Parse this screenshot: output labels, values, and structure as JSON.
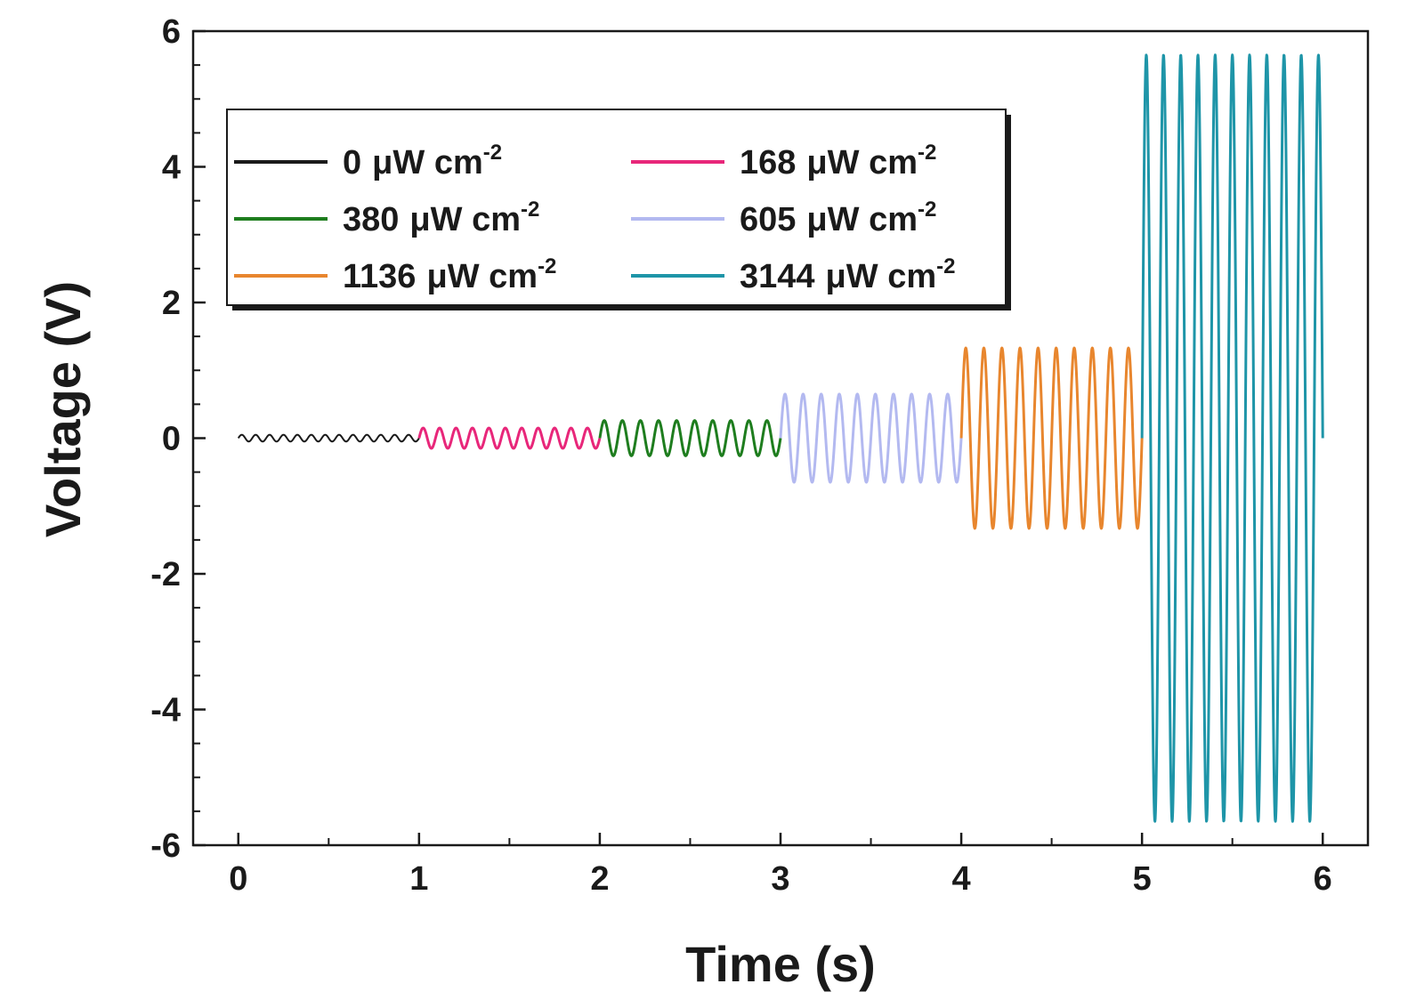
{
  "chart_data": {
    "type": "line",
    "xlabel": "Time (s)",
    "ylabel": "Voltage (V)",
    "xlim": [
      -0.25,
      6.25
    ],
    "ylim": [
      -6,
      6
    ],
    "x_ticks": [
      "0",
      "1",
      "2",
      "3",
      "4",
      "5",
      "6"
    ],
    "y_ticks": [
      "-6",
      "-4",
      "-2",
      "0",
      "2",
      "4",
      "6"
    ],
    "grid": false,
    "legend": {
      "placement": "top-left",
      "columns": 2,
      "unit": "μW cm",
      "unit_exponent": "-2"
    },
    "series": [
      {
        "name": "0",
        "color": "#1a1a1a",
        "x_start": 0,
        "x_end": 1,
        "amplitude": 0.05,
        "cycles": 13
      },
      {
        "name": "168",
        "color": "#e8277a",
        "x_start": 1,
        "x_end": 2,
        "amplitude": 0.15,
        "cycles": 11
      },
      {
        "name": "380",
        "color": "#1e7d1e",
        "x_start": 2,
        "x_end": 3,
        "amplitude": 0.26,
        "cycles": 10
      },
      {
        "name": "605",
        "color": "#b3b9f0",
        "x_start": 3,
        "x_end": 4,
        "amplitude": 0.65,
        "cycles": 10
      },
      {
        "name": "1136",
        "color": "#e8862e",
        "x_start": 4,
        "x_end": 5,
        "amplitude": 1.33,
        "cycles": 10
      },
      {
        "name": "3144",
        "color": "#1e95a8",
        "x_start": 5,
        "x_end": 6,
        "amplitude": 5.65,
        "cycles": 10.5
      }
    ]
  }
}
